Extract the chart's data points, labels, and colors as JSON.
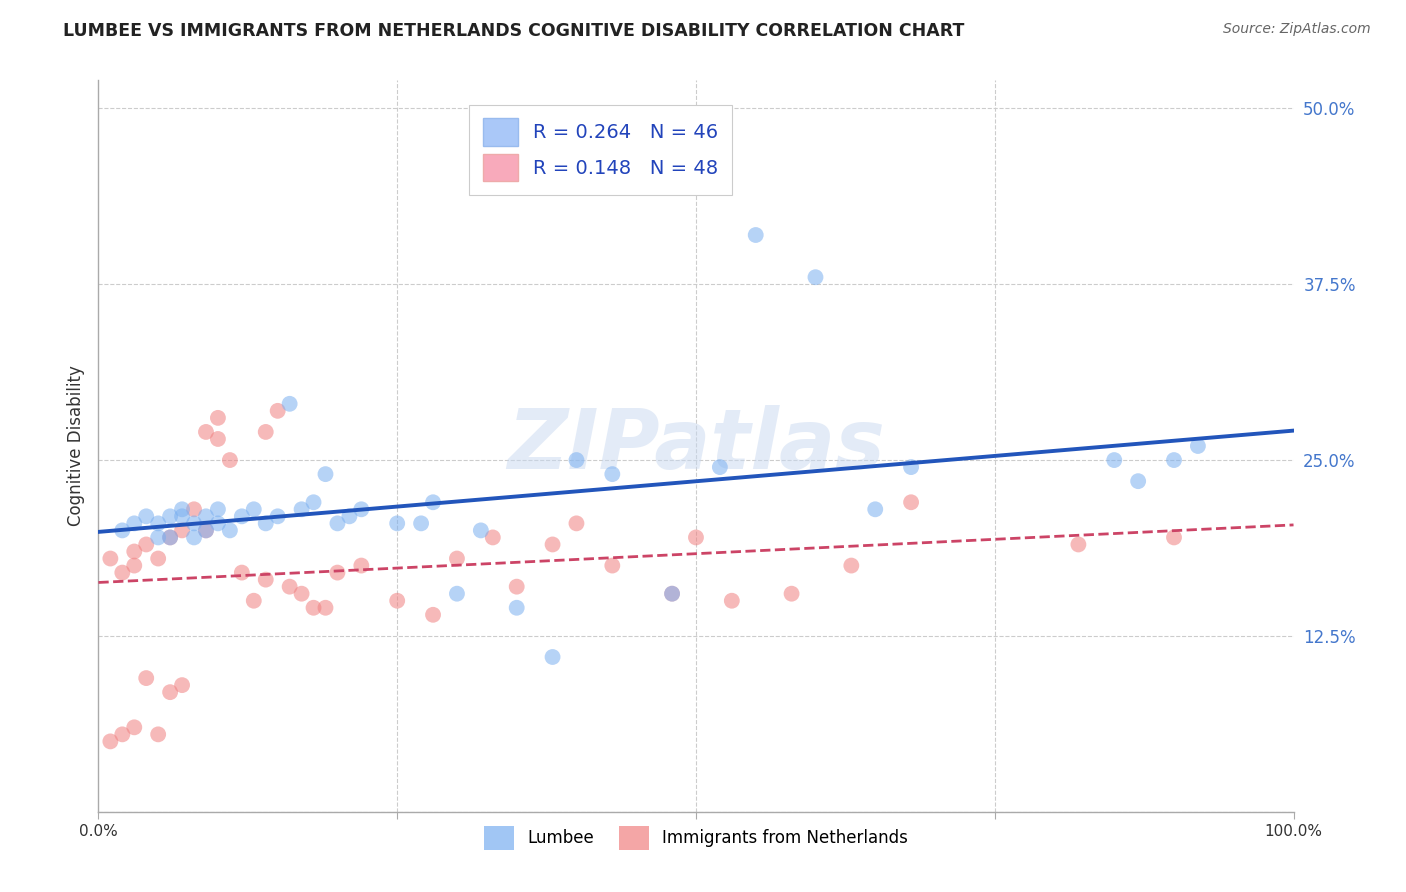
{
  "title": "LUMBEE VS IMMIGRANTS FROM NETHERLANDS COGNITIVE DISABILITY CORRELATION CHART",
  "source": "Source: ZipAtlas.com",
  "ylabel": "Cognitive Disability",
  "xlim": [
    0,
    1.0
  ],
  "ylim": [
    0,
    0.52
  ],
  "yticks": [
    0.0,
    0.125,
    0.25,
    0.375,
    0.5
  ],
  "ytick_labels": [
    "",
    "12.5%",
    "25.0%",
    "37.5%",
    "50.0%"
  ],
  "xticks": [
    0.0,
    0.25,
    0.5,
    0.75,
    1.0
  ],
  "xtick_labels": [
    "0.0%",
    "",
    "",
    "",
    "100.0%"
  ],
  "grid_color": "#cccccc",
  "background_color": "#ffffff",
  "lumbee_color": "#7aaff0",
  "netherlands_color": "#f08080",
  "lumbee_R": 0.264,
  "lumbee_N": 46,
  "netherlands_R": 0.148,
  "netherlands_N": 48,
  "legend_entries": [
    "Lumbee",
    "Immigrants from Netherlands"
  ],
  "watermark": "ZIPatlas",
  "lumbee_x": [
    0.02,
    0.03,
    0.04,
    0.05,
    0.05,
    0.06,
    0.06,
    0.07,
    0.07,
    0.08,
    0.08,
    0.09,
    0.09,
    0.1,
    0.1,
    0.11,
    0.12,
    0.13,
    0.14,
    0.15,
    0.16,
    0.17,
    0.18,
    0.19,
    0.2,
    0.21,
    0.22,
    0.25,
    0.27,
    0.28,
    0.3,
    0.32,
    0.35,
    0.38,
    0.4,
    0.43,
    0.48,
    0.52,
    0.55,
    0.6,
    0.65,
    0.68,
    0.85,
    0.87,
    0.9,
    0.92
  ],
  "lumbee_y": [
    0.2,
    0.205,
    0.21,
    0.195,
    0.205,
    0.195,
    0.21,
    0.21,
    0.215,
    0.195,
    0.205,
    0.2,
    0.21,
    0.205,
    0.215,
    0.2,
    0.21,
    0.215,
    0.205,
    0.21,
    0.29,
    0.215,
    0.22,
    0.24,
    0.205,
    0.21,
    0.215,
    0.205,
    0.205,
    0.22,
    0.155,
    0.2,
    0.145,
    0.11,
    0.25,
    0.24,
    0.155,
    0.245,
    0.41,
    0.38,
    0.215,
    0.245,
    0.25,
    0.235,
    0.25,
    0.26
  ],
  "netherlands_x": [
    0.01,
    0.01,
    0.02,
    0.02,
    0.03,
    0.03,
    0.03,
    0.04,
    0.04,
    0.05,
    0.05,
    0.06,
    0.06,
    0.07,
    0.07,
    0.08,
    0.09,
    0.09,
    0.1,
    0.1,
    0.11,
    0.12,
    0.13,
    0.14,
    0.14,
    0.15,
    0.16,
    0.17,
    0.18,
    0.19,
    0.2,
    0.22,
    0.25,
    0.28,
    0.3,
    0.33,
    0.35,
    0.38,
    0.4,
    0.43,
    0.48,
    0.5,
    0.53,
    0.58,
    0.63,
    0.68,
    0.82,
    0.9
  ],
  "netherlands_y": [
    0.18,
    0.05,
    0.17,
    0.055,
    0.06,
    0.175,
    0.185,
    0.095,
    0.19,
    0.055,
    0.18,
    0.085,
    0.195,
    0.09,
    0.2,
    0.215,
    0.2,
    0.27,
    0.265,
    0.28,
    0.25,
    0.17,
    0.15,
    0.27,
    0.165,
    0.285,
    0.16,
    0.155,
    0.145,
    0.145,
    0.17,
    0.175,
    0.15,
    0.14,
    0.18,
    0.195,
    0.16,
    0.19,
    0.205,
    0.175,
    0.155,
    0.195,
    0.15,
    0.155,
    0.175,
    0.22,
    0.19,
    0.195
  ]
}
